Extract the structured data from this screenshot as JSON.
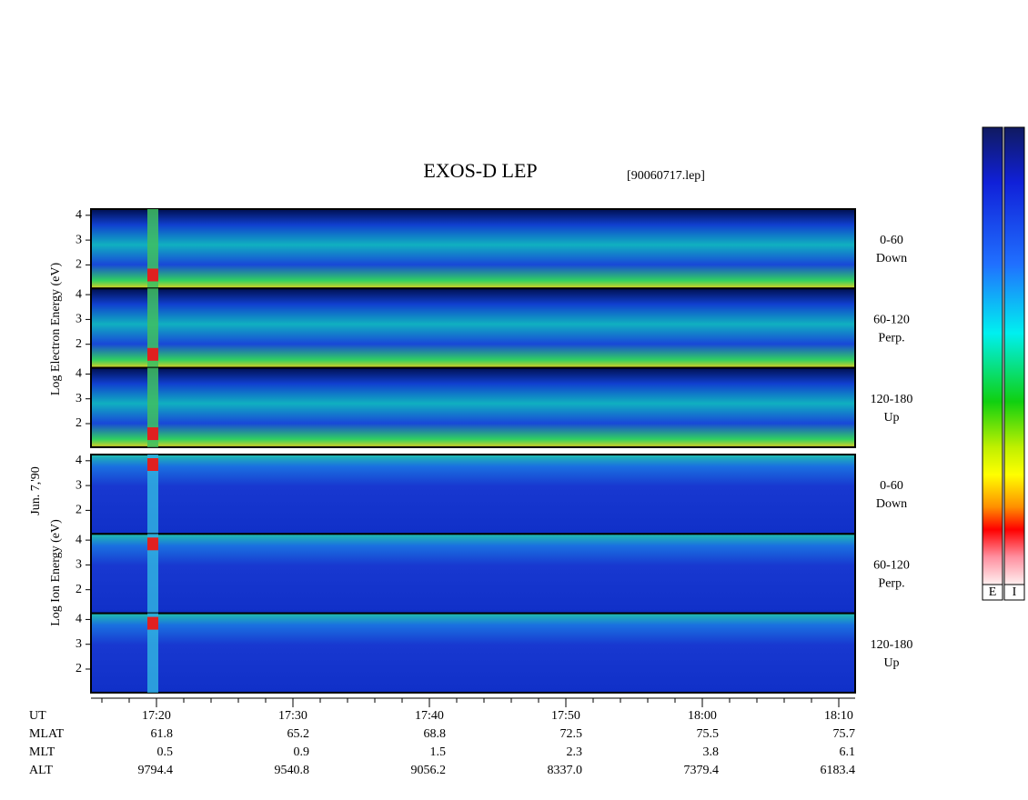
{
  "header": {
    "title": "EXOS-D LEP",
    "file": "[90060717.lep]",
    "date": "Jun. 7,'90"
  },
  "electron": {
    "axis_label": "Log Electron Energy (eV)",
    "yticks": [
      2,
      3,
      4
    ],
    "panels": [
      {
        "angle": "0-60",
        "direction": "Down"
      },
      {
        "angle": "60-120",
        "direction": "Perp."
      },
      {
        "angle": "120-180",
        "direction": "Up"
      }
    ]
  },
  "ion": {
    "axis_label": "Log Ion Energy (eV)",
    "yticks": [
      2,
      3,
      4
    ],
    "panels": [
      {
        "angle": "0-60",
        "direction": "Down"
      },
      {
        "angle": "60-120",
        "direction": "Perp."
      },
      {
        "angle": "120-180",
        "direction": "Up"
      }
    ]
  },
  "ephemeris": {
    "rows": [
      {
        "name": "UT",
        "values": [
          "17:20",
          "17:30",
          "17:40",
          "17:50",
          "18:00",
          "18:10"
        ]
      },
      {
        "name": "MLAT",
        "values": [
          "61.8",
          "65.2",
          "68.8",
          "72.5",
          "75.5",
          "75.7"
        ]
      },
      {
        "name": "MLT",
        "values": [
          "0.5",
          "0.9",
          "1.5",
          "2.3",
          "3.8",
          "6.1"
        ]
      },
      {
        "name": "ALT",
        "values": [
          "9794.4",
          "9540.8",
          "9056.2",
          "8337.0",
          "7379.4",
          "6183.4"
        ]
      }
    ]
  },
  "colorbars": [
    "E",
    "I"
  ]
}
